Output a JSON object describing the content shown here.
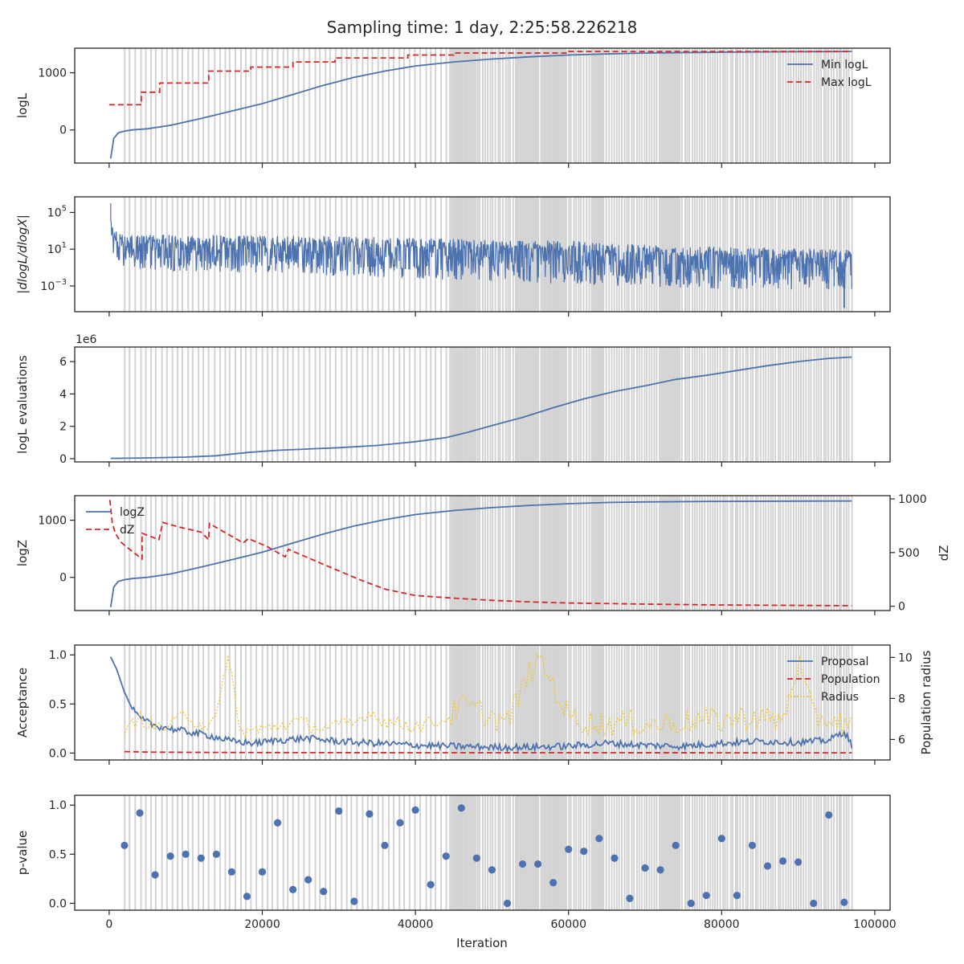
{
  "figure": {
    "suptitle": "Sampling time: 1 day, 2:25:58.226218",
    "x_label": "Iteration",
    "x_ticks": [
      0,
      20000,
      40000,
      60000,
      80000,
      100000
    ],
    "x_tick_labels": [
      "0",
      "20000",
      "40000",
      "60000",
      "80000",
      "100000"
    ],
    "x_range": [
      -4500,
      102000
    ]
  },
  "colors": {
    "blue": "#4c72b0",
    "red": "#d62728",
    "yellow": "#f2c530",
    "band": "#d3d3d3",
    "axis": "#262626"
  },
  "chart_data": [
    {
      "type": "line",
      "panel": "logL",
      "ylabel": "logL",
      "ylim": [
        -580,
        1430
      ],
      "y_ticks": [
        0,
        1000
      ],
      "y_tick_labels": [
        "0",
        "1000"
      ],
      "legend": {
        "placement": "top-right",
        "entries": [
          "Min logL",
          "Max logL"
        ]
      },
      "series": [
        {
          "name": "Min logL",
          "style": "solid",
          "color": "blue",
          "x": [
            200,
            600,
            1200,
            2000,
            3000,
            5000,
            8000,
            12000,
            16000,
            20000,
            24000,
            28000,
            32000,
            36000,
            40000,
            45000,
            50000,
            55000,
            60000,
            65000,
            70000,
            80000,
            90000,
            97000
          ],
          "y": [
            -500,
            -150,
            -50,
            -20,
            0,
            20,
            80,
            200,
            330,
            460,
            620,
            780,
            920,
            1030,
            1120,
            1190,
            1240,
            1280,
            1310,
            1330,
            1345,
            1360,
            1368,
            1372
          ]
        },
        {
          "name": "Max logL",
          "style": "dashed",
          "color": "red",
          "step": true,
          "x": [
            0,
            4200,
            4200,
            6600,
            6600,
            13000,
            13000,
            18500,
            18500,
            24000,
            24000,
            29500,
            29500,
            39000,
            39000,
            45000,
            45000,
            60000,
            60000,
            97000
          ],
          "y": [
            440,
            440,
            660,
            660,
            820,
            820,
            1030,
            1030,
            1100,
            1100,
            1190,
            1190,
            1260,
            1260,
            1310,
            1310,
            1345,
            1345,
            1372,
            1372
          ]
        }
      ]
    },
    {
      "type": "line",
      "panel": "dlogL",
      "ylabel": "|dlogL/dlogX|",
      "y_scale": "log",
      "ylim_log10": [
        -5.8,
        6.7
      ],
      "y_ticks": [
        100000,
        10,
        0.001
      ],
      "y_tick_labels": [
        "10⁵",
        "10¹",
        "10⁻³"
      ],
      "series": [
        {
          "name": "",
          "style": "solid",
          "color": "blue",
          "kind": "noise-band",
          "x": [
            0,
            500,
            1000,
            2000,
            5000,
            10000,
            20000,
            30000,
            40000,
            50000,
            60000,
            70000,
            80000,
            90000,
            97000
          ],
          "upper_log10": [
            6.0,
            4.0,
            2.9,
            2.5,
            2.6,
            2.6,
            2.5,
            2.4,
            2.2,
            2.1,
            1.9,
            1.6,
            1.3,
            1.1,
            1.0
          ],
          "lower_log10": [
            3.0,
            0.5,
            -0.5,
            -1.2,
            -1.3,
            -1.4,
            -1.6,
            -1.9,
            -2.2,
            -2.5,
            -2.8,
            -3.1,
            -3.3,
            -3.4,
            -3.5
          ],
          "min_spike": {
            "x": 96000,
            "y_log10": -5.4
          }
        }
      ]
    },
    {
      "type": "line",
      "panel": "evaluations",
      "ylabel": "logL evaluations",
      "offset_label": "1e6",
      "ylim": [
        -0.2,
        6.9
      ],
      "y_ticks": [
        0,
        2,
        4,
        6
      ],
      "y_tick_labels": [
        "0",
        "2",
        "4",
        "6"
      ],
      "series": [
        {
          "name": "",
          "style": "solid",
          "color": "blue",
          "x": [
            200,
            5000,
            10000,
            14000,
            18000,
            22000,
            26000,
            30000,
            35000,
            40000,
            44000,
            47000,
            50000,
            54000,
            58000,
            62000,
            66000,
            70000,
            74000,
            78000,
            82000,
            86000,
            90000,
            94000,
            97000
          ],
          "y": [
            0.02,
            0.05,
            0.1,
            0.18,
            0.38,
            0.52,
            0.6,
            0.68,
            0.82,
            1.05,
            1.3,
            1.65,
            2.05,
            2.55,
            3.15,
            3.7,
            4.15,
            4.5,
            4.9,
            5.15,
            5.45,
            5.75,
            6.0,
            6.2,
            6.28
          ]
        }
      ]
    },
    {
      "type": "line",
      "panel": "logZ",
      "ylabel": "logZ",
      "ylabel_right": "dZ",
      "ylim": [
        -580,
        1430
      ],
      "ylim_right": [
        -40,
        1030
      ],
      "y_ticks": [
        0,
        1000
      ],
      "y_tick_labels": [
        "0",
        "1000"
      ],
      "y_ticks_right": [
        0,
        500,
        1000
      ],
      "y_tick_labels_right": [
        "0",
        "500",
        "1000"
      ],
      "legend": {
        "placement": "top-left",
        "entries": [
          "logZ",
          "dZ"
        ]
      },
      "series": [
        {
          "name": "logZ",
          "style": "solid",
          "color": "blue",
          "axis": "left",
          "x": [
            200,
            600,
            1200,
            2000,
            3000,
            5000,
            8000,
            12000,
            16000,
            20000,
            24000,
            28000,
            32000,
            36000,
            40000,
            45000,
            50000,
            55000,
            60000,
            65000,
            70000,
            80000,
            90000,
            97000
          ],
          "y": [
            -520,
            -170,
            -70,
            -40,
            -20,
            0,
            60,
            180,
            310,
            440,
            600,
            760,
            900,
            1010,
            1100,
            1170,
            1220,
            1260,
            1290,
            1310,
            1320,
            1330,
            1335,
            1337
          ]
        },
        {
          "name": "dZ",
          "style": "dashed",
          "color": "red",
          "axis": "right",
          "x": [
            100,
            400,
            800,
            1500,
            2500,
            4300,
            4300,
            6500,
            7000,
            9000,
            12000,
            13000,
            13100,
            17500,
            18200,
            20500,
            23000,
            23400,
            27000,
            30000,
            33000,
            36000,
            40000,
            45000,
            50000,
            55000,
            60000,
            70000,
            80000,
            90000,
            97000
          ],
          "y": [
            990,
            780,
            680,
            600,
            540,
            440,
            680,
            620,
            780,
            740,
            690,
            620,
            770,
            590,
            630,
            560,
            460,
            530,
            420,
            330,
            240,
            160,
            100,
            75,
            55,
            40,
            30,
            20,
            12,
            8,
            5
          ]
        }
      ]
    },
    {
      "type": "line",
      "panel": "acceptance",
      "ylabel": "Acceptance",
      "ylabel_right": "Population radius",
      "ylim": [
        -0.07,
        1.1
      ],
      "ylim_right": [
        5.0,
        10.6
      ],
      "y_ticks": [
        0.0,
        0.5,
        1.0
      ],
      "y_tick_labels": [
        "0.0",
        "0.5",
        "1.0"
      ],
      "y_ticks_right": [
        6,
        8,
        10
      ],
      "y_tick_labels_right": [
        "6",
        "8",
        "10"
      ],
      "legend": {
        "placement": "top-right",
        "entries": [
          "Proposal",
          "Population",
          "Radius"
        ]
      },
      "series": [
        {
          "name": "Proposal",
          "style": "solid",
          "color": "blue",
          "axis": "left",
          "x": [
            200,
            1000,
            2000,
            3000,
            4000,
            6000,
            8000,
            10000,
            13000,
            16000,
            19000,
            22000,
            26000,
            30000,
            35000,
            40000,
            45000,
            50000,
            55000,
            60000,
            65000,
            70000,
            75000,
            80000,
            85000,
            90000,
            94000,
            96000,
            97000
          ],
          "y": [
            0.98,
            0.85,
            0.62,
            0.45,
            0.35,
            0.28,
            0.25,
            0.22,
            0.18,
            0.12,
            0.1,
            0.13,
            0.15,
            0.12,
            0.1,
            0.08,
            0.07,
            0.06,
            0.06,
            0.07,
            0.1,
            0.08,
            0.07,
            0.1,
            0.12,
            0.11,
            0.13,
            0.22,
            0.08
          ]
        },
        {
          "name": "Population",
          "style": "dashed",
          "color": "red",
          "axis": "left",
          "x": [
            2000,
            5000,
            10000,
            20000,
            40000,
            60000,
            80000,
            97000
          ],
          "y": [
            0.015,
            0.01,
            0.008,
            0.005,
            0.004,
            0.004,
            0.003,
            0.003
          ]
        },
        {
          "name": "Radius",
          "style": "dotted",
          "color": "yellow",
          "axis": "right",
          "x": [
            2000,
            3000,
            4000,
            6000,
            8000,
            10000,
            12000,
            14000,
            15500,
            16000,
            17000,
            20000,
            24000,
            28000,
            32000,
            34000,
            36000,
            40000,
            44000,
            46000,
            48000,
            52000,
            56000,
            60000,
            64000,
            68000,
            72000,
            76000,
            80000,
            84000,
            88000,
            90000,
            92000,
            94000,
            97000
          ],
          "y": [
            6.0,
            6.7,
            7.0,
            6.5,
            6.6,
            7.2,
            6.6,
            6.8,
            10.1,
            9.0,
            6.3,
            6.4,
            6.8,
            6.5,
            6.7,
            7.3,
            6.8,
            6.6,
            6.9,
            7.5,
            7.3,
            6.7,
            10.0,
            7.0,
            6.6,
            6.7,
            6.6,
            6.8,
            6.8,
            7.0,
            6.7,
            9.7,
            6.9,
            6.9,
            6.6
          ]
        }
      ]
    },
    {
      "type": "scatter",
      "panel": "p-value",
      "ylabel": "p-value",
      "ylim": [
        -0.07,
        1.1
      ],
      "y_ticks": [
        0.0,
        0.5,
        1.0
      ],
      "y_tick_labels": [
        "0.0",
        "0.5",
        "1.0"
      ],
      "series": [
        {
          "name": "",
          "color": "blue",
          "x": [
            2000,
            4000,
            6000,
            8000,
            10000,
            12000,
            14000,
            16000,
            18000,
            20000,
            22000,
            24000,
            26000,
            28000,
            30000,
            32000,
            34000,
            36000,
            38000,
            40000,
            42000,
            44000,
            46000,
            48000,
            50000,
            52000,
            54000,
            56000,
            58000,
            60000,
            62000,
            64000,
            66000,
            68000,
            70000,
            72000,
            74000,
            76000,
            78000,
            80000,
            82000,
            84000,
            86000,
            88000,
            90000,
            92000,
            94000,
            96000
          ],
          "y": [
            0.59,
            0.92,
            0.29,
            0.48,
            0.5,
            0.46,
            0.5,
            0.32,
            0.07,
            0.32,
            0.82,
            0.14,
            0.24,
            0.12,
            0.94,
            0.02,
            0.91,
            0.59,
            0.82,
            0.95,
            0.19,
            0.48,
            0.97,
            0.46,
            0.34,
            0.0,
            0.4,
            0.4,
            0.21,
            0.55,
            0.53,
            0.66,
            0.46,
            0.05,
            0.36,
            0.34,
            0.59,
            0.0,
            0.08,
            0.66,
            0.08,
            0.59,
            0.38,
            0.43,
            0.42,
            0.0,
            0.9,
            0.01
          ]
        }
      ]
    }
  ],
  "bands": {
    "sparse_range": [
      2000,
      44500
    ],
    "sparse_step": 690,
    "dense_range": [
      44500,
      97000
    ],
    "dense_step": 330,
    "solid_blocks": [
      [
        44700,
        48000
      ],
      [
        53000,
        56000
      ],
      [
        56500,
        59800
      ],
      [
        63000,
        64500
      ],
      [
        72000,
        74500
      ]
    ]
  }
}
